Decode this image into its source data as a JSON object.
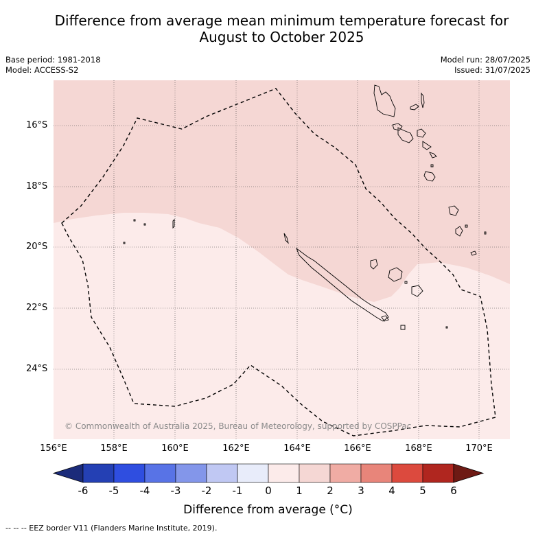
{
  "title": {
    "line1": "Difference from average mean minimum temperature forecast for",
    "line2": "August to October 2025"
  },
  "meta": {
    "base_period": "Base period: 1981-2018",
    "model": "Model: ACCESS-S2",
    "model_run": "Model run: 28/07/2025",
    "issued": "Issued: 31/07/2025"
  },
  "map": {
    "lat_labels": [
      "16°S",
      "18°S",
      "20°S",
      "22°S",
      "24°S"
    ],
    "lon_labels": [
      "156°E",
      "158°E",
      "160°E",
      "162°E",
      "164°E",
      "166°E",
      "168°E",
      "170°E"
    ],
    "copyright": "© Commonwealth of Australia 2025, Bureau of Meteorology, supported by COSPPac",
    "region_colors": {
      "warm_1_to_2": "#f5d7d4",
      "warm_0_to_1": "#fcebea"
    }
  },
  "colorbar": {
    "ticks": [
      "-6",
      "-5",
      "-4",
      "-3",
      "-2",
      "-1",
      "0",
      "1",
      "2",
      "3",
      "4",
      "5",
      "6"
    ],
    "colors": [
      "#1b2b7a",
      "#2440b4",
      "#2f4ee0",
      "#5873e6",
      "#8396ea",
      "#c0c8f3",
      "#e8ecfa",
      "#fcebea",
      "#f5d7d4",
      "#f0aca4",
      "#e8857a",
      "#dc4a3e",
      "#b0261f",
      "#6e1a14"
    ],
    "label": "Difference from average (°C)"
  },
  "footer": "--  --  -- EEZ border V11 (Flanders Marine Institute, 2019)."
}
